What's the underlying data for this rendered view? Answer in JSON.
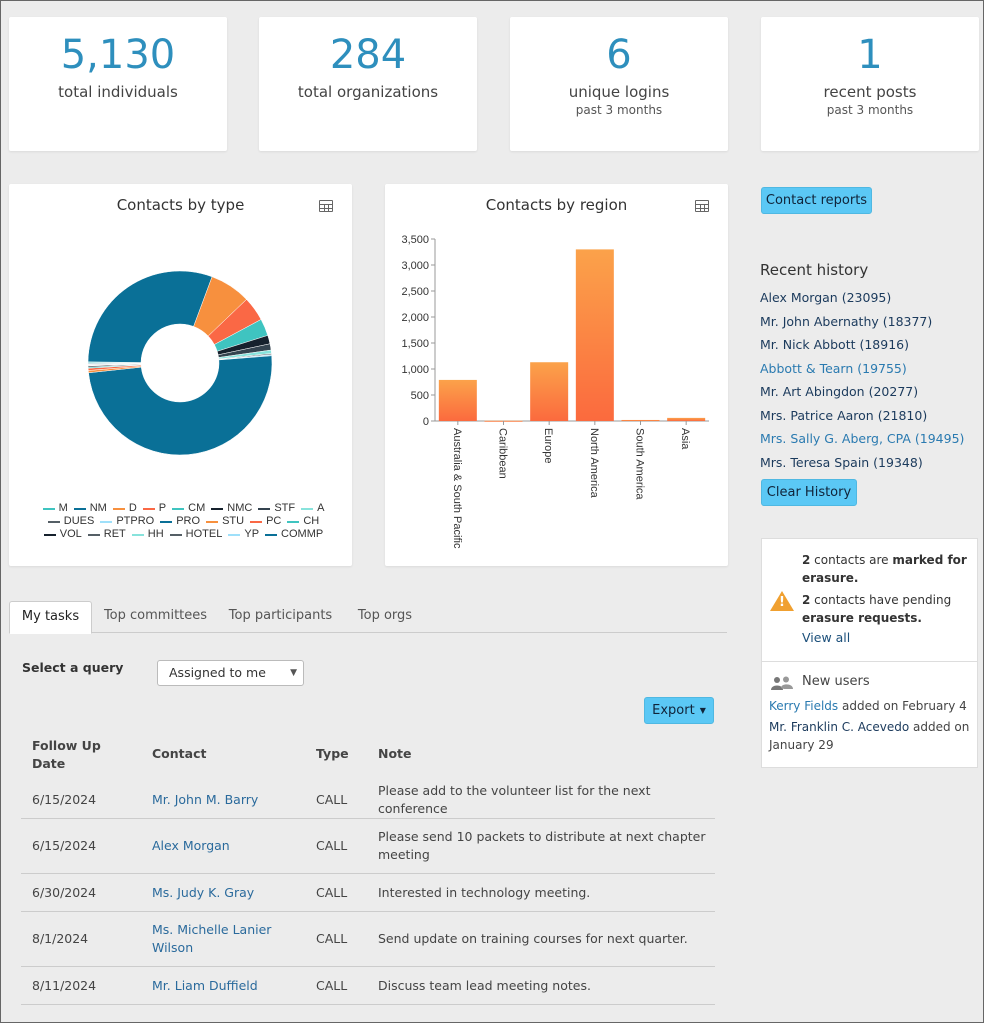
{
  "stats": [
    {
      "value": "5,130",
      "label": "total individuals",
      "sub": ""
    },
    {
      "value": "284",
      "label": "total organizations",
      "sub": ""
    },
    {
      "value": "6",
      "label": "unique logins",
      "sub": "past 3 months"
    },
    {
      "value": "1",
      "label": "recent posts",
      "sub": "past 3 months"
    }
  ],
  "charts": {
    "type_title": "Contacts by type",
    "region_title": "Contacts by region"
  },
  "chart_data": [
    {
      "type": "pie",
      "title": "Contacts by type",
      "series": [
        {
          "values": [
            0.2,
            30.5,
            7.2,
            4.3,
            3.0,
            1.5,
            1.1,
            0.6,
            0.2,
            0.2,
            49.6,
            0.4,
            0.4,
            0.2,
            0.2,
            0.1,
            0.1,
            0.1,
            0.1,
            0.1
          ]
        }
      ],
      "categories": [
        "M",
        "NM",
        "D",
        "P",
        "CM",
        "NMC",
        "STF",
        "A",
        "DUES",
        "PTPRO",
        "PRO",
        "STU",
        "PC",
        "CH",
        "VOL",
        "RET",
        "HH",
        "HOTEL",
        "YP",
        "COMMP"
      ],
      "colors": [
        "#3fc4c0",
        "#0a7097",
        "#f7903e",
        "#fa6845",
        "#3fc4c0",
        "#16212d",
        "#34434f",
        "#88e3dc",
        "#555f66",
        "#9fe0fa",
        "#0a7097",
        "#f7903e",
        "#fa6845",
        "#3fc4c0",
        "#16212d",
        "#555f66",
        "#88e3dc",
        "#555f66",
        "#9fe0fa",
        "#0a7097"
      ]
    },
    {
      "type": "bar",
      "title": "Contacts by region",
      "categories": [
        "Australia & South Pacific",
        "Caribbean",
        "Europe",
        "North America",
        "South America",
        "Asia"
      ],
      "values": [
        790,
        5,
        1130,
        3300,
        20,
        60
      ],
      "ylim": [
        0,
        3500
      ],
      "yticks": [
        "3,500",
        "3,000",
        "2,500",
        "2,000",
        "1,500",
        "1,000",
        "500",
        "0"
      ]
    }
  ],
  "legend_rows": [
    [
      "M",
      "NM",
      "D",
      "P",
      "CM",
      "NMC",
      "STF",
      "A"
    ],
    [
      "DUES",
      "PTPRO",
      "PRO",
      "STU",
      "PC",
      "CH"
    ],
    [
      "VOL",
      "RET",
      "HH",
      "HOTEL",
      "YP",
      "COMMP"
    ]
  ],
  "sidebar": {
    "contact_reports": "Contact reports",
    "recent_history_title": "Recent history",
    "recent_history": [
      {
        "text": "Alex Morgan (23095)",
        "style": "dark"
      },
      {
        "text": "Mr. John Abernathy (18377)",
        "style": "dark"
      },
      {
        "text": "Mr. Nick Abbott (18916)",
        "style": "dark"
      },
      {
        "text": "Abbott & Tearn (19755)",
        "style": "link"
      },
      {
        "text": "Mr. Art Abingdon (20277)",
        "style": "dark"
      },
      {
        "text": "Mrs. Patrice Aaron (21810)",
        "style": "dark"
      },
      {
        "text": "Mrs. Sally G. Aberg, CPA (19495)",
        "style": "link"
      },
      {
        "text": "Mrs. Teresa Spain (19348)",
        "style": "dark"
      }
    ],
    "clear_history": "Clear History"
  },
  "notice": {
    "erasure_count": "2",
    "erasure_text1": " contacts are ",
    "erasure_bold": "marked for erasure.",
    "pending_count": "2",
    "pending_text1": " contacts have pending ",
    "pending_bold": "erasure requests.",
    "view_all": "View all",
    "new_users_title": "New users",
    "user1_name": "Kerry Fields",
    "user1_text": " added on February 4",
    "user2_name": "Mr. Franklin C. Acevedo",
    "user2_text": " added on January 29"
  },
  "tabs": [
    "My tasks",
    "Top committees",
    "Top participants",
    "Top orgs"
  ],
  "query": {
    "label": "Select a query",
    "selected": "Assigned to me"
  },
  "export_label": "Export",
  "table": {
    "headers": [
      "Follow Up Date",
      "Contact",
      "Type",
      "Note"
    ],
    "rows": [
      {
        "date": "6/15/2024",
        "contact": "Mr. John M. Barry",
        "type": "CALL",
        "note": "Please add to the volunteer list for the next conference"
      },
      {
        "date": "6/15/2024",
        "contact": "Alex Morgan",
        "type": "CALL",
        "note": "Please send 10 packets to distribute at next chapter meeting"
      },
      {
        "date": "6/30/2024",
        "contact": "Ms. Judy K. Gray",
        "type": "CALL",
        "note": "Interested in technology meeting."
      },
      {
        "date": "8/1/2024",
        "contact": "Ms. Michelle Lanier Wilson",
        "type": "CALL",
        "note": "Send update on training courses for next quarter."
      },
      {
        "date": "8/11/2024",
        "contact": "Mr. Liam Duffield",
        "type": "CALL",
        "note": "Discuss team lead meeting notes."
      }
    ]
  }
}
